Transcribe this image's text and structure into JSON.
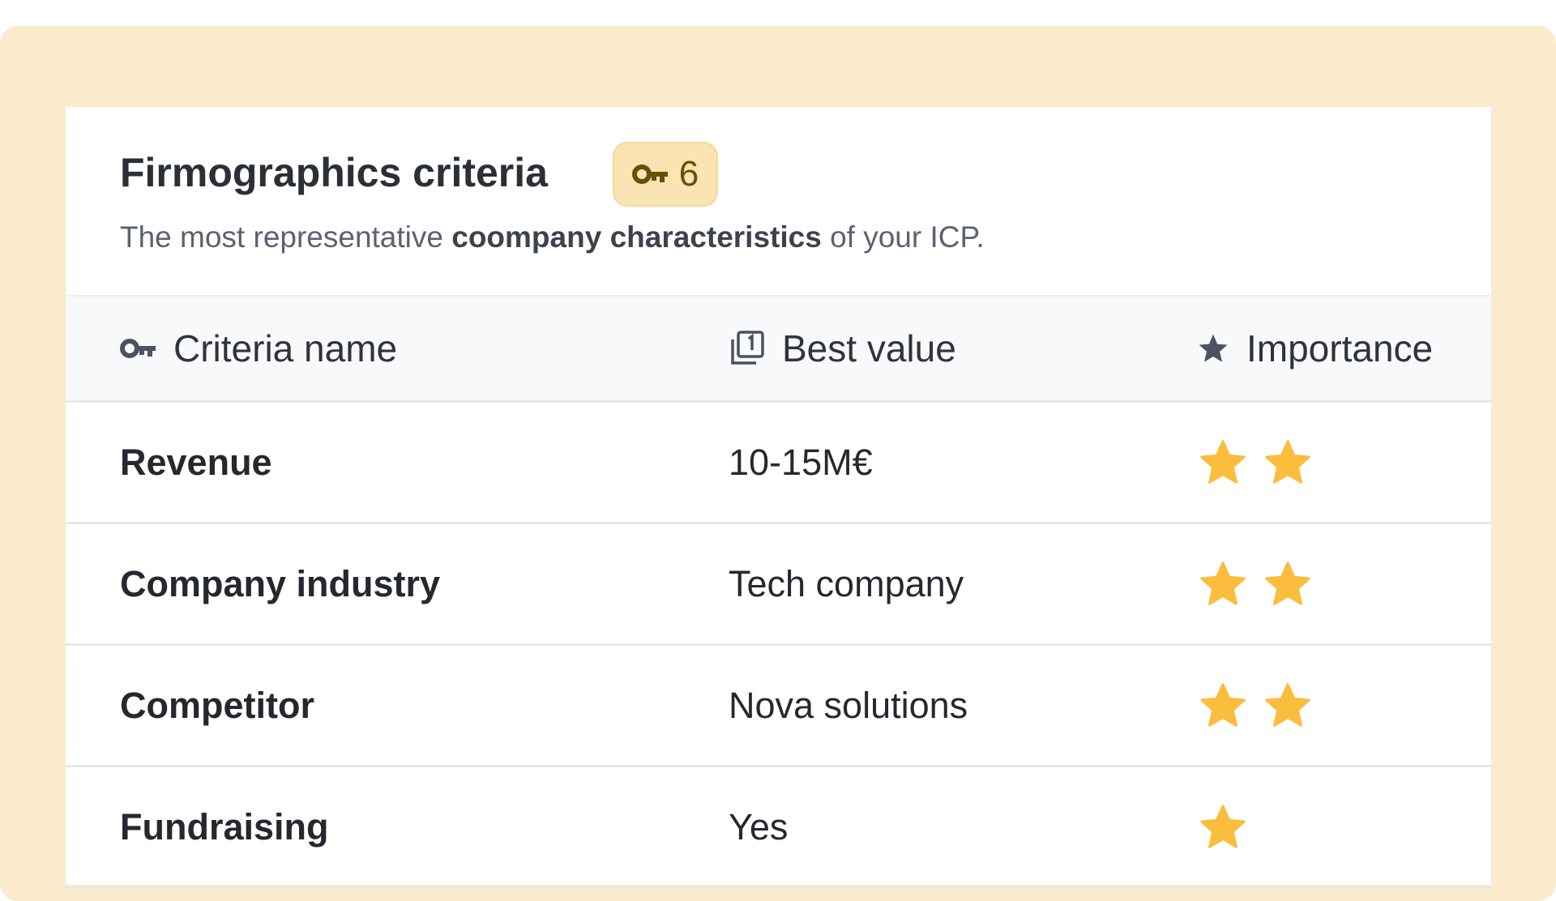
{
  "header": {
    "title": "Firmographics criteria",
    "badge_count": 6,
    "subtitle": {
      "before": "The most representative ",
      "bold": "coompany characteristics",
      "after": " of your ICP."
    }
  },
  "table": {
    "columns": [
      "Criteria name",
      "Best value",
      "Importance"
    ],
    "rows": [
      {
        "name": "Revenue",
        "value": "10-15M€",
        "importance": 2
      },
      {
        "name": "Company industry",
        "value": "Tech company",
        "importance": 2
      },
      {
        "name": "Competitor",
        "value": "Nova solutions",
        "importance": 2
      },
      {
        "name": "Fundraising",
        "value": "Yes",
        "importance": 1
      }
    ]
  }
}
